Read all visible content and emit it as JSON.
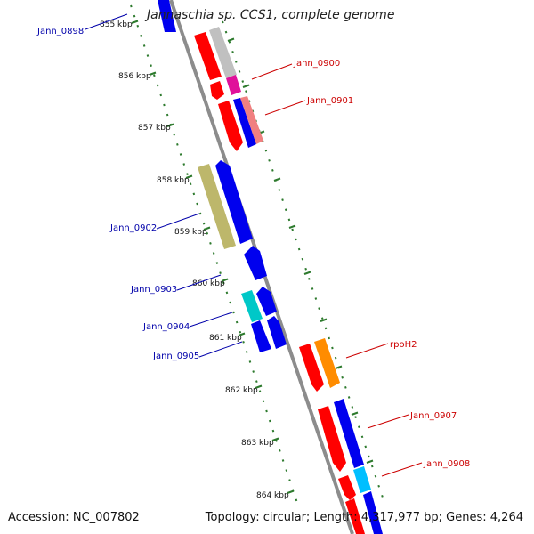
{
  "title": "Jannaschia sp. CCS1, complete genome",
  "footer": {
    "accession_label": "Accession:",
    "accession": "NC_007802",
    "topology_label": "Topology:",
    "topology": "circular",
    "length_label": "Length:",
    "length": "4,317,977 bp",
    "genes_label": "Genes:",
    "genes": "4,264"
  },
  "colors": {
    "backbone": "#8c8c8c",
    "ruler": "#2d7a2d",
    "label_left": "#0000aa",
    "label_right": "#cc0000"
  },
  "ruler_labels": [
    "855 kbp",
    "856 kbp",
    "857 kbp",
    "858 kbp",
    "859 kbp",
    "860 kbp",
    "861 kbp",
    "862 kbp",
    "863 kbp",
    "864 kbp"
  ],
  "gene_labels": [
    {
      "text": "Jann_0898",
      "side": "left"
    },
    {
      "text": "Jann_0900",
      "side": "right"
    },
    {
      "text": "Jann_0901",
      "side": "right"
    },
    {
      "text": "Jann_0902",
      "side": "left"
    },
    {
      "text": "Jann_0903",
      "side": "left"
    },
    {
      "text": "Jann_0904",
      "side": "left"
    },
    {
      "text": "Jann_0905",
      "side": "left"
    },
    {
      "text": "rpoH2",
      "side": "right"
    },
    {
      "text": "Jann_0907",
      "side": "right"
    },
    {
      "text": "Jann_0908",
      "side": "right"
    }
  ]
}
